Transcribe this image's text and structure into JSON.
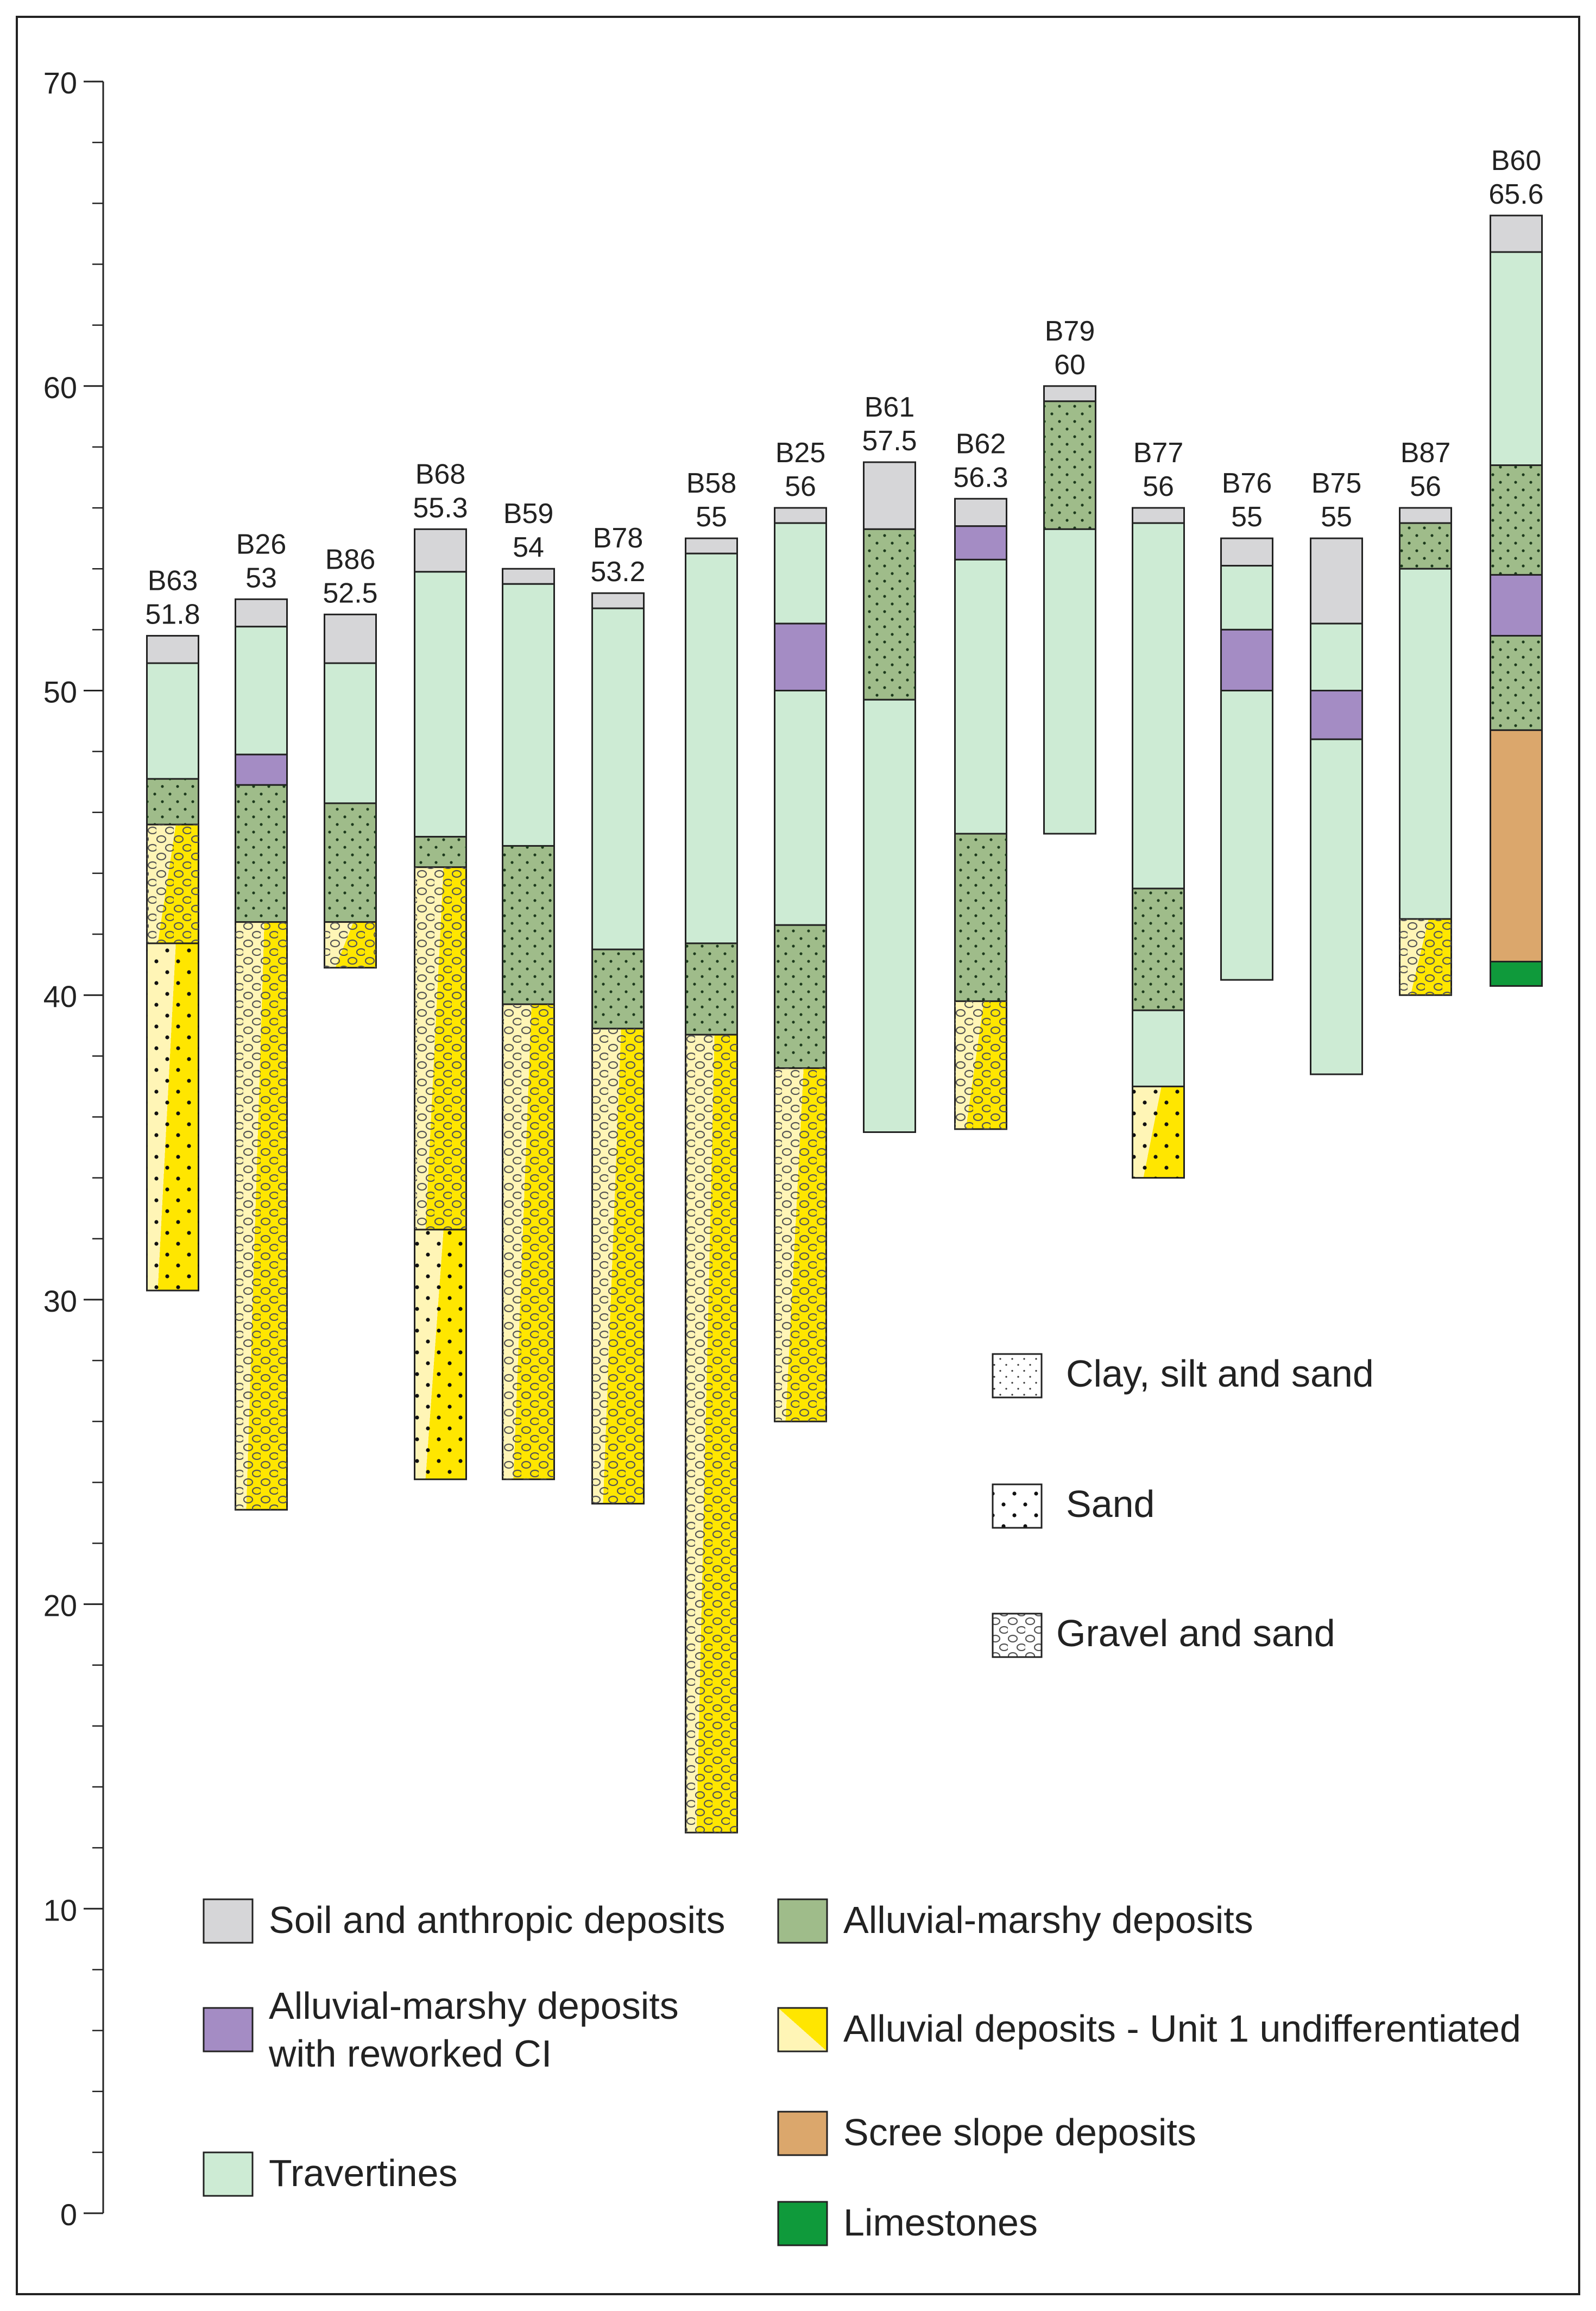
{
  "colors": {
    "soil": "#d6d6d8",
    "marshy": "#9fbc8a",
    "marshy_ci": "#a48cc4",
    "travertine": "#cdebd4",
    "scree": "#dba76c",
    "limestone": "#0f9a3b",
    "alluvial_light": "#fff5b6",
    "alluvial_yellow": "#ffe600",
    "frame": "#222222"
  },
  "chart_data": {
    "type": "stratigraphic-column",
    "ylim": [
      0,
      70
    ],
    "y_ticks": [
      0,
      10,
      20,
      30,
      40,
      50,
      60,
      70
    ],
    "y_tick_labels": [
      "0",
      "10",
      "20",
      "30",
      "40",
      "50",
      "60",
      "70"
    ],
    "y_minor_step": 2,
    "boreholes": [
      {
        "name": "B63",
        "elevation_label": "51.8",
        "layers": [
          {
            "top": 51.8,
            "bottom": 50.9,
            "unit": "soil"
          },
          {
            "top": 50.9,
            "bottom": 47.1,
            "unit": "travertine"
          },
          {
            "top": 47.1,
            "bottom": 45.6,
            "unit": "marshy"
          },
          {
            "top": 45.6,
            "bottom": 41.7,
            "unit": "alluvial",
            "texture": "gravel"
          },
          {
            "top": 41.7,
            "bottom": 30.3,
            "unit": "alluvial",
            "texture": "sand"
          }
        ]
      },
      {
        "name": "B26",
        "elevation_label": "53",
        "layers": [
          {
            "top": 53.0,
            "bottom": 52.1,
            "unit": "soil"
          },
          {
            "top": 52.1,
            "bottom": 47.9,
            "unit": "travertine"
          },
          {
            "top": 47.9,
            "bottom": 46.9,
            "unit": "marshy_ci"
          },
          {
            "top": 46.9,
            "bottom": 42.4,
            "unit": "marshy"
          },
          {
            "top": 42.4,
            "bottom": 23.1,
            "unit": "alluvial",
            "texture": "gravel"
          }
        ]
      },
      {
        "name": "B86",
        "elevation_label": "52.5",
        "layers": [
          {
            "top": 52.5,
            "bottom": 50.9,
            "unit": "soil"
          },
          {
            "top": 50.9,
            "bottom": 46.3,
            "unit": "travertine"
          },
          {
            "top": 46.3,
            "bottom": 42.4,
            "unit": "marshy"
          },
          {
            "top": 42.4,
            "bottom": 40.9,
            "unit": "alluvial",
            "texture": "gravel"
          }
        ]
      },
      {
        "name": "B68",
        "elevation_label": "55.3",
        "layers": [
          {
            "top": 55.3,
            "bottom": 53.9,
            "unit": "soil"
          },
          {
            "top": 53.9,
            "bottom": 45.2,
            "unit": "travertine"
          },
          {
            "top": 45.2,
            "bottom": 44.2,
            "unit": "marshy"
          },
          {
            "top": 44.2,
            "bottom": 32.3,
            "unit": "alluvial",
            "texture": "gravel"
          },
          {
            "top": 32.3,
            "bottom": 24.1,
            "unit": "alluvial",
            "texture": "sand"
          }
        ]
      },
      {
        "name": "B59",
        "elevation_label": "54",
        "layers": [
          {
            "top": 54.0,
            "bottom": 53.5,
            "unit": "soil"
          },
          {
            "top": 53.5,
            "bottom": 44.9,
            "unit": "travertine"
          },
          {
            "top": 44.9,
            "bottom": 39.7,
            "unit": "marshy"
          },
          {
            "top": 39.7,
            "bottom": 24.1,
            "unit": "alluvial",
            "texture": "gravel"
          }
        ]
      },
      {
        "name": "B78",
        "elevation_label": "53.2",
        "layers": [
          {
            "top": 53.2,
            "bottom": 52.7,
            "unit": "soil"
          },
          {
            "top": 52.7,
            "bottom": 41.5,
            "unit": "travertine"
          },
          {
            "top": 41.5,
            "bottom": 38.9,
            "unit": "marshy"
          },
          {
            "top": 38.9,
            "bottom": 23.3,
            "unit": "alluvial",
            "texture": "gravel"
          }
        ]
      },
      {
        "name": "B58",
        "elevation_label": "55",
        "layers": [
          {
            "top": 55.0,
            "bottom": 54.5,
            "unit": "soil"
          },
          {
            "top": 54.5,
            "bottom": 41.7,
            "unit": "travertine"
          },
          {
            "top": 41.7,
            "bottom": 38.7,
            "unit": "marshy"
          },
          {
            "top": 38.7,
            "bottom": 12.5,
            "unit": "alluvial",
            "texture": "gravel"
          }
        ]
      },
      {
        "name": "B25",
        "elevation_label": "56",
        "layers": [
          {
            "top": 56.0,
            "bottom": 55.5,
            "unit": "soil"
          },
          {
            "top": 55.5,
            "bottom": 52.2,
            "unit": "travertine"
          },
          {
            "top": 52.2,
            "bottom": 50.0,
            "unit": "marshy_ci"
          },
          {
            "top": 50.0,
            "bottom": 42.3,
            "unit": "travertine"
          },
          {
            "top": 42.3,
            "bottom": 37.6,
            "unit": "marshy"
          },
          {
            "top": 37.6,
            "bottom": 26.0,
            "unit": "alluvial",
            "texture": "gravel"
          }
        ]
      },
      {
        "name": "B61",
        "elevation_label": "57.5",
        "layers": [
          {
            "top": 57.5,
            "bottom": 55.3,
            "unit": "soil"
          },
          {
            "top": 55.3,
            "bottom": 49.7,
            "unit": "marshy"
          },
          {
            "top": 49.7,
            "bottom": 35.5,
            "unit": "travertine"
          }
        ]
      },
      {
        "name": "B62",
        "elevation_label": "56.3",
        "layers": [
          {
            "top": 56.3,
            "bottom": 55.4,
            "unit": "soil"
          },
          {
            "top": 55.4,
            "bottom": 54.3,
            "unit": "marshy_ci"
          },
          {
            "top": 54.3,
            "bottom": 45.3,
            "unit": "travertine"
          },
          {
            "top": 45.3,
            "bottom": 39.8,
            "unit": "marshy"
          },
          {
            "top": 39.8,
            "bottom": 35.6,
            "unit": "alluvial",
            "texture": "gravel"
          }
        ]
      },
      {
        "name": "B79",
        "elevation_label": "60",
        "layers": [
          {
            "top": 60.0,
            "bottom": 59.5,
            "unit": "soil"
          },
          {
            "top": 59.5,
            "bottom": 55.3,
            "unit": "marshy"
          },
          {
            "top": 55.3,
            "bottom": 45.3,
            "unit": "travertine"
          }
        ]
      },
      {
        "name": "B77",
        "elevation_label": "56",
        "layers": [
          {
            "top": 56.0,
            "bottom": 55.5,
            "unit": "soil"
          },
          {
            "top": 55.5,
            "bottom": 43.5,
            "unit": "travertine"
          },
          {
            "top": 43.5,
            "bottom": 39.5,
            "unit": "marshy"
          },
          {
            "top": 39.5,
            "bottom": 37.0,
            "unit": "travertine"
          },
          {
            "top": 37.0,
            "bottom": 34.0,
            "unit": "alluvial",
            "texture": "sand"
          }
        ]
      },
      {
        "name": "B76",
        "elevation_label": "55",
        "layers": [
          {
            "top": 55.0,
            "bottom": 54.1,
            "unit": "soil"
          },
          {
            "top": 54.1,
            "bottom": 52.0,
            "unit": "travertine"
          },
          {
            "top": 52.0,
            "bottom": 50.0,
            "unit": "marshy_ci"
          },
          {
            "top": 50.0,
            "bottom": 40.5,
            "unit": "travertine"
          }
        ]
      },
      {
        "name": "B75",
        "elevation_label": "55",
        "layers": [
          {
            "top": 55.0,
            "bottom": 52.2,
            "unit": "soil"
          },
          {
            "top": 52.2,
            "bottom": 50.0,
            "unit": "travertine"
          },
          {
            "top": 50.0,
            "bottom": 48.4,
            "unit": "marshy_ci"
          },
          {
            "top": 48.4,
            "bottom": 37.4,
            "unit": "travertine"
          }
        ]
      },
      {
        "name": "B87",
        "elevation_label": "56",
        "layers": [
          {
            "top": 56.0,
            "bottom": 55.5,
            "unit": "soil"
          },
          {
            "top": 55.5,
            "bottom": 54.0,
            "unit": "marshy"
          },
          {
            "top": 54.0,
            "bottom": 42.5,
            "unit": "travertine"
          },
          {
            "top": 42.5,
            "bottom": 40.0,
            "unit": "alluvial",
            "texture": "gravel"
          }
        ]
      },
      {
        "name": "B60",
        "elevation_label": "65.6",
        "layers": [
          {
            "top": 65.6,
            "bottom": 64.4,
            "unit": "soil"
          },
          {
            "top": 64.4,
            "bottom": 57.4,
            "unit": "travertine"
          },
          {
            "top": 57.4,
            "bottom": 53.8,
            "unit": "marshy"
          },
          {
            "top": 53.8,
            "bottom": 51.8,
            "unit": "marshy_ci"
          },
          {
            "top": 51.8,
            "bottom": 48.7,
            "unit": "marshy"
          },
          {
            "top": 48.7,
            "bottom": 41.1,
            "unit": "scree"
          },
          {
            "top": 41.1,
            "bottom": 40.3,
            "unit": "limestone"
          }
        ]
      }
    ],
    "texture_legend": [
      {
        "label": "Clay, silt and sand",
        "pattern": "fine"
      },
      {
        "label": "Sand",
        "pattern": "sand"
      },
      {
        "label": "Gravel and sand",
        "pattern": "gravel"
      }
    ],
    "unit_legend": [
      {
        "label": "Soil and anthropic deposits",
        "unit": "soil"
      },
      {
        "label": "Alluvial-marshy deposits",
        "unit": "marshy"
      },
      {
        "label": [
          "Alluvial-marshy deposits",
          "with reworked CI"
        ],
        "unit": "marshy_ci"
      },
      {
        "label": "Alluvial deposits - Unit 1 undifferentiated",
        "unit": "alluvial"
      },
      {
        "label": "Travertines",
        "unit": "travertine"
      },
      {
        "label": "Scree slope deposits",
        "unit": "scree"
      },
      {
        "label": "Limestones",
        "unit": "limestone"
      }
    ]
  }
}
